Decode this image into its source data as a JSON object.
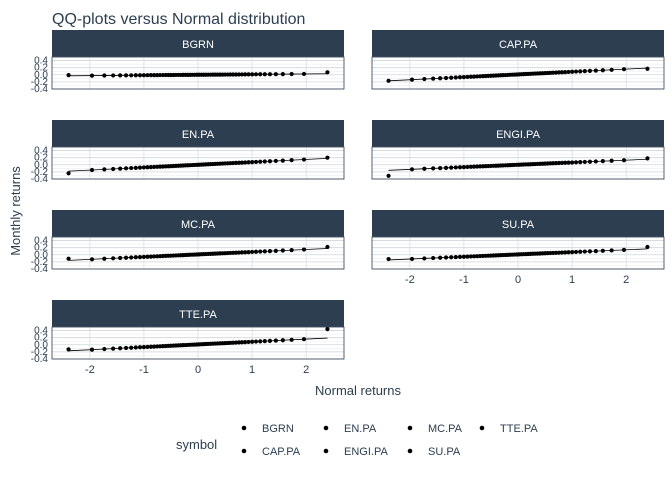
{
  "chart_data": {
    "type": "scatter",
    "title": "QQ-plots versus Normal distribution",
    "xlabel": "Normal returns",
    "ylabel": "Monthly returns",
    "legend_title": "symbol",
    "legend_position": "bottom",
    "grid": true,
    "xlim": [
      -2.7,
      2.7
    ],
    "ylim": [
      -0.4,
      0.5
    ],
    "x_ticks": [
      -2,
      -1,
      0,
      1,
      2
    ],
    "y_ticks": [
      -0.4,
      -0.2,
      0.0,
      0.2,
      0.4
    ],
    "x_tick_labels": [
      "-2",
      "-1",
      "0",
      "1",
      "2"
    ],
    "y_tick_labels": [
      "-0.4",
      "-0.2",
      "0.0",
      "0.2",
      "0.4"
    ],
    "n_points_per_panel": 60,
    "series": [
      {
        "name": "BGRN",
        "slope": 0.012,
        "intercept": 0.0,
        "min": -0.01,
        "max": 0.07
      },
      {
        "name": "CAP.PA",
        "slope": 0.075,
        "intercept": 0.01,
        "min": -0.17,
        "max": 0.17
      },
      {
        "name": "EN.PA",
        "slope": 0.075,
        "intercept": 0.0,
        "min": -0.24,
        "max": 0.2
      },
      {
        "name": "ENGI.PA",
        "slope": 0.065,
        "intercept": 0.0,
        "min": -0.31,
        "max": 0.18
      },
      {
        "name": "MC.PA",
        "slope": 0.07,
        "intercept": 0.01,
        "min": -0.11,
        "max": 0.22
      },
      {
        "name": "SU.PA",
        "slope": 0.065,
        "intercept": 0.01,
        "min": -0.12,
        "max": 0.22
      },
      {
        "name": "TTE.PA",
        "slope": 0.075,
        "intercept": 0.01,
        "min": -0.13,
        "max": 0.44
      }
    ],
    "legend_items": [
      "BGRN",
      "EN.PA",
      "MC.PA",
      "TTE.PA",
      "CAP.PA",
      "ENGI.PA",
      "SU.PA"
    ]
  },
  "colors": {
    "strip_bg": "#2c3e50",
    "strip_text": "#ffffff",
    "title": "#2c3e50",
    "axis_text": "#2c3e50",
    "grid_major": "#cfd6dc",
    "grid_minor": "#e7ebee",
    "points": "#000000"
  }
}
